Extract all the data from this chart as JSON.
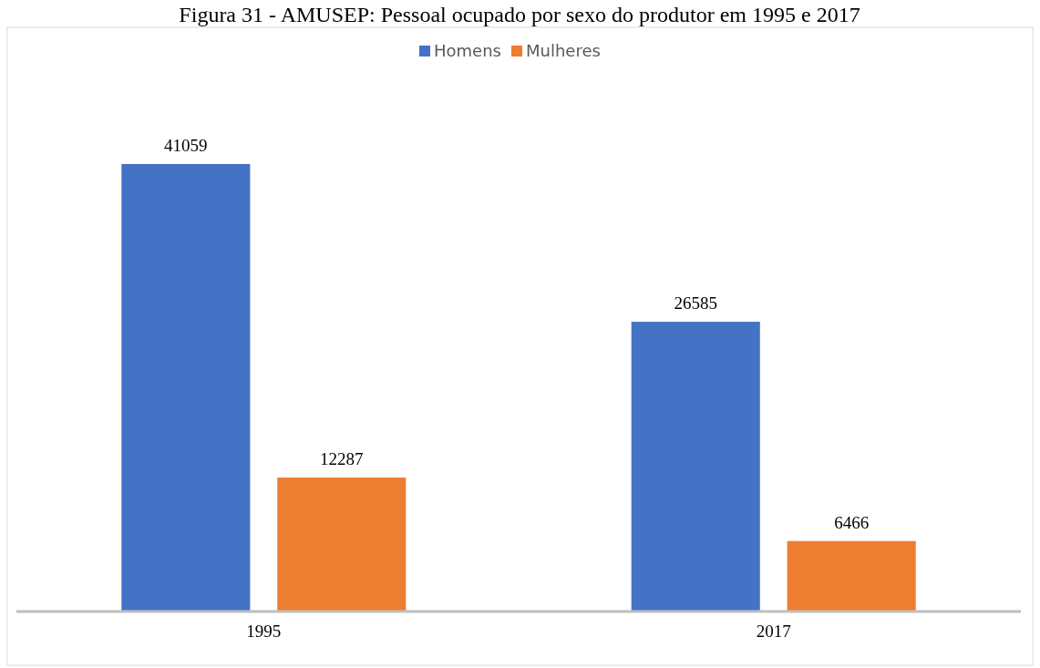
{
  "chart_data": {
    "type": "bar",
    "title": "Figura 31 - AMUSEP: Pessoal ocupado por sexo do produtor em 1995 e 2017",
    "categories": [
      "1995",
      "2017"
    ],
    "series": [
      {
        "name": "Homens",
        "color": "#4472c4",
        "values": [
          41059,
          26585
        ]
      },
      {
        "name": "Mulheres",
        "color": "#ed7d31",
        "values": [
          12287,
          6466
        ]
      }
    ],
    "data_labels": true,
    "legend": "top",
    "grid": false
  }
}
